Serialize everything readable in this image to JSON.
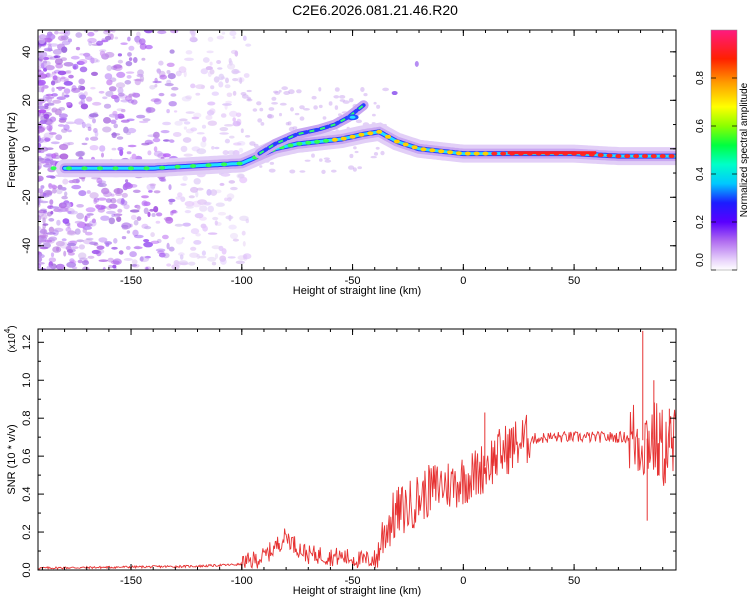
{
  "title": "C2E6.2026.081.21.46.R20",
  "chart_data": [
    {
      "type": "heatmap",
      "xlabel": "Height of straight line (km)",
      "ylabel": "Frequency (Hz)",
      "xlim": [
        -192,
        96
      ],
      "ylim": [
        -50,
        49
      ],
      "xticks": [
        -150,
        -100,
        -50,
        0,
        50
      ],
      "yticks": [
        -40,
        -20,
        0,
        20,
        40
      ],
      "colorbar": {
        "label": "Normalized spectral amplitude",
        "range": [
          0.0,
          1.0
        ],
        "ticks": [
          0.0,
          0.2,
          0.4,
          0.6,
          0.8
        ]
      },
      "ridge": {
        "x": [
          -180,
          -160,
          -140,
          -120,
          -100,
          -95,
          -85,
          -75,
          -65,
          -55,
          -45,
          -38,
          -30,
          -20,
          -10,
          0,
          10,
          30,
          50,
          70,
          90
        ],
        "y": [
          -8,
          -8,
          -8,
          -7,
          -6,
          -4,
          0,
          2,
          3,
          4,
          6,
          7,
          3,
          0,
          -1,
          -2,
          -2,
          -2,
          -2,
          -3,
          -3
        ]
      },
      "upper_branch": {
        "x": [
          -92,
          -85,
          -75,
          -65,
          -58,
          -52,
          -45
        ],
        "y": [
          -2,
          2,
          6,
          8,
          10,
          13,
          18
        ]
      }
    },
    {
      "type": "line",
      "xlabel": "Height of straight line (km)",
      "ylabel": "SNR (10 * v/v)",
      "yscale_note": "(x10",
      "yscale_exp": "4",
      "xlim": [
        -192,
        96
      ],
      "ylim": [
        0,
        1.27
      ],
      "xticks": [
        -150,
        -100,
        -50,
        0,
        50
      ],
      "yticks": [
        0.0,
        0.2,
        0.4,
        0.6,
        0.8,
        1.0,
        1.2
      ],
      "series_color": "#e63232",
      "envelope": {
        "x": [
          -192,
          -120,
          -100,
          -90,
          -85,
          -80,
          -75,
          -70,
          -65,
          -60,
          -55,
          -50,
          -45,
          -40,
          -35,
          -30,
          -25,
          -20,
          -15,
          -10,
          -5,
          0,
          5,
          10,
          15,
          20,
          25,
          30,
          40,
          50,
          60,
          70,
          75,
          80,
          85,
          90,
          96
        ],
        "y": [
          0.01,
          0.02,
          0.03,
          0.07,
          0.12,
          0.18,
          0.12,
          0.08,
          0.08,
          0.07,
          0.07,
          0.06,
          0.05,
          0.06,
          0.22,
          0.3,
          0.33,
          0.38,
          0.42,
          0.45,
          0.45,
          0.48,
          0.5,
          0.55,
          0.6,
          0.64,
          0.67,
          0.69,
          0.7,
          0.7,
          0.7,
          0.7,
          0.7,
          0.68,
          0.7,
          0.64,
          0.65
        ]
      },
      "spikes": [
        {
          "x": 9.7,
          "y": 0.83
        },
        {
          "x": 81,
          "y": 1.26
        },
        {
          "x": 83,
          "y": 0.26
        },
        {
          "x": 86,
          "y": 1.0
        },
        {
          "x": 88,
          "y": 0.5
        },
        {
          "x": 93,
          "y": 0.85
        }
      ]
    }
  ]
}
